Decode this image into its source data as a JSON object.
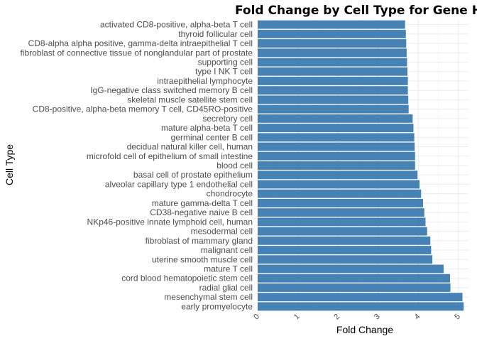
{
  "chart_data": {
    "type": "bar",
    "orientation": "horizontal",
    "title": "Fold Change by Cell Type for Gene HMG",
    "xlabel": "Fold Change",
    "ylabel": "Cell Type",
    "xlim": [
      0,
      5.25
    ],
    "x_ticks": [
      "0",
      "1",
      "2",
      "3",
      "4",
      "5"
    ],
    "grid": true,
    "bar_color": "#4682b4",
    "categories": [
      "activated CD8-positive, alpha-beta T cell",
      "thyroid follicular cell",
      "CD8-alpha alpha positive, gamma-delta intraepithelial T cell",
      "fibroblast of connective tissue of nonglandular part of prostate",
      "supporting cell",
      "type I NK T cell",
      "intraepithelial lymphocyte",
      "IgG-negative class switched memory B cell",
      "skeletal muscle satellite stem cell",
      "CD8-positive, alpha-beta memory T cell, CD45RO-positive",
      "secretory cell",
      "mature alpha-beta T cell",
      "germinal center B cell",
      "decidual natural killer cell, human",
      "microfold cell of epithelium of small intestine",
      "blood cell",
      "basal cell of prostate epithelium",
      "alveolar capillary type 1 endothelial cell",
      "chondrocyte",
      "mature gamma-delta T cell",
      "CD38-negative naive B cell",
      "NKp46-positive innate lymphoid cell, human",
      "mesodermal cell",
      "fibroblast of mammary gland",
      "malignant cell",
      "uterine smooth muscle cell",
      "mature T cell",
      "cord blood hematopoietic stem cell",
      "radial glial cell",
      "mesenchymal stem cell",
      "early promyelocyte"
    ],
    "values": [
      3.67,
      3.69,
      3.7,
      3.71,
      3.72,
      3.73,
      3.74,
      3.74,
      3.75,
      3.76,
      3.86,
      3.88,
      3.9,
      3.91,
      3.92,
      3.92,
      3.98,
      4.03,
      4.07,
      4.12,
      4.15,
      4.18,
      4.22,
      4.3,
      4.32,
      4.35,
      4.63,
      4.79,
      4.8,
      5.1,
      5.13
    ]
  }
}
